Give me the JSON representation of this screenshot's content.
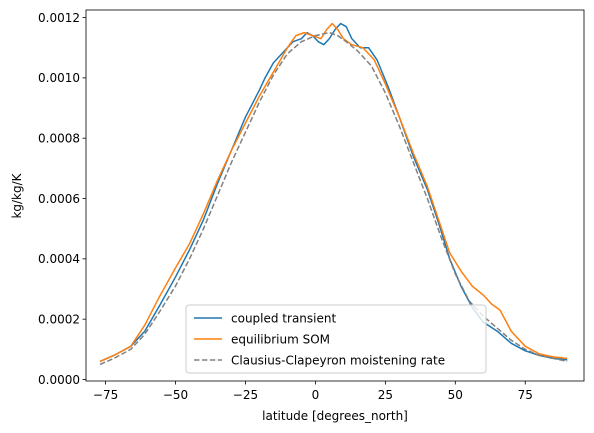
{
  "chart_data": {
    "type": "line",
    "title": "",
    "xlabel": "latitude [degrees_north]",
    "ylabel": "kg/kg/K",
    "xlim": [
      -82,
      96
    ],
    "ylim": [
      -5e-06,
      0.001225
    ],
    "xticks": [
      -75,
      -50,
      -25,
      0,
      25,
      50,
      75
    ],
    "xtick_labels": [
      "−75",
      "−50",
      "−25",
      "0",
      "25",
      "50",
      "75"
    ],
    "yticks": [
      0.0,
      0.0002,
      0.0004,
      0.0006,
      0.0008,
      0.001,
      0.0012
    ],
    "ytick_labels": [
      "0.0000",
      "0.0002",
      "0.0004",
      "0.0006",
      "0.0008",
      "0.0010",
      "0.0012"
    ],
    "grid": false,
    "legend_position": "lower-center",
    "series": [
      {
        "name": "coupled transient",
        "color": "#1f77b4",
        "dash": "solid",
        "points": [
          [
            -77,
            6e-05
          ],
          [
            -72,
            8e-05
          ],
          [
            -66,
            0.00011
          ],
          [
            -61,
            0.00016
          ],
          [
            -56,
            0.00024
          ],
          [
            -50,
            0.00034
          ],
          [
            -45,
            0.00043
          ],
          [
            -40,
            0.00053
          ],
          [
            -35,
            0.00065
          ],
          [
            -30,
            0.00076
          ],
          [
            -25,
            0.00087
          ],
          [
            -20,
            0.00096
          ],
          [
            -18,
            0.001
          ],
          [
            -15,
            0.00105
          ],
          [
            -12,
            0.00108
          ],
          [
            -8,
            0.00112
          ],
          [
            -5,
            0.00113
          ],
          [
            -3,
            0.00115
          ],
          [
            -1,
            0.00114
          ],
          [
            1,
            0.00112
          ],
          [
            3,
            0.00111
          ],
          [
            5,
            0.00113
          ],
          [
            7,
            0.00116
          ],
          [
            9,
            0.00118
          ],
          [
            11,
            0.00117
          ],
          [
            13,
            0.00113
          ],
          [
            16,
            0.0011
          ],
          [
            19,
            0.0011
          ],
          [
            22,
            0.00106
          ],
          [
            26,
            0.00097
          ],
          [
            30,
            0.00087
          ],
          [
            35,
            0.00074
          ],
          [
            40,
            0.00063
          ],
          [
            44,
            0.00052
          ],
          [
            48,
            0.0004
          ],
          [
            52,
            0.00031
          ],
          [
            56,
            0.00024
          ],
          [
            60,
            0.00019
          ],
          [
            65,
            0.00016
          ],
          [
            70,
            0.00012
          ],
          [
            75,
            9.5e-05
          ],
          [
            80,
            8e-05
          ],
          [
            85,
            7e-05
          ],
          [
            90,
            6.5e-05
          ]
        ]
      },
      {
        "name": "equilibrium SOM",
        "color": "#ff7f0e",
        "dash": "solid",
        "points": [
          [
            -77,
            6e-05
          ],
          [
            -72,
            8e-05
          ],
          [
            -66,
            0.00011
          ],
          [
            -61,
            0.00018
          ],
          [
            -56,
            0.00027
          ],
          [
            -50,
            0.00037
          ],
          [
            -45,
            0.00045
          ],
          [
            -40,
            0.00055
          ],
          [
            -35,
            0.00066
          ],
          [
            -30,
            0.00076
          ],
          [
            -25,
            0.00085
          ],
          [
            -20,
            0.00094
          ],
          [
            -15,
            0.00102
          ],
          [
            -10,
            0.0011
          ],
          [
            -7,
            0.00114
          ],
          [
            -4,
            0.00115
          ],
          [
            -1,
            0.00114
          ],
          [
            2,
            0.00113
          ],
          [
            4,
            0.00116
          ],
          [
            6,
            0.00118
          ],
          [
            8,
            0.00116
          ],
          [
            10,
            0.00113
          ],
          [
            13,
            0.00111
          ],
          [
            17,
            0.0011
          ],
          [
            21,
            0.00106
          ],
          [
            25,
            0.00098
          ],
          [
            30,
            0.00087
          ],
          [
            35,
            0.00075
          ],
          [
            40,
            0.00064
          ],
          [
            44,
            0.00053
          ],
          [
            48,
            0.00042
          ],
          [
            52,
            0.00036
          ],
          [
            56,
            0.00031
          ],
          [
            60,
            0.00028
          ],
          [
            63,
            0.00025
          ],
          [
            66,
            0.00023
          ],
          [
            70,
            0.00016
          ],
          [
            75,
            0.00011
          ],
          [
            80,
            8.5e-05
          ],
          [
            85,
            7.5e-05
          ],
          [
            90,
            7e-05
          ]
        ]
      },
      {
        "name": "Clausius-Clapeyron moistening rate",
        "color": "#808080",
        "dash": "dashed",
        "points": [
          [
            -77,
            5e-05
          ],
          [
            -72,
            7e-05
          ],
          [
            -66,
            0.0001
          ],
          [
            -61,
            0.00015
          ],
          [
            -56,
            0.00022
          ],
          [
            -50,
            0.00031
          ],
          [
            -45,
            0.0004
          ],
          [
            -40,
            0.0005
          ],
          [
            -35,
            0.00061
          ],
          [
            -30,
            0.00072
          ],
          [
            -25,
            0.00082
          ],
          [
            -20,
            0.00092
          ],
          [
            -15,
            0.00101
          ],
          [
            -10,
            0.00108
          ],
          [
            -5,
            0.00112
          ],
          [
            0,
            0.00114
          ],
          [
            5,
            0.00115
          ],
          [
            8,
            0.00114
          ],
          [
            11,
            0.00112
          ],
          [
            15,
            0.00109
          ],
          [
            20,
            0.00104
          ],
          [
            25,
            0.00095
          ],
          [
            30,
            0.00084
          ],
          [
            35,
            0.00072
          ],
          [
            40,
            0.0006
          ],
          [
            45,
            0.00047
          ],
          [
            50,
            0.00035
          ],
          [
            55,
            0.00026
          ],
          [
            60,
            0.00021
          ],
          [
            65,
            0.00017
          ],
          [
            70,
            0.00013
          ],
          [
            75,
            0.0001
          ],
          [
            80,
            8e-05
          ],
          [
            85,
            7e-05
          ],
          [
            90,
            6e-05
          ]
        ]
      }
    ]
  }
}
